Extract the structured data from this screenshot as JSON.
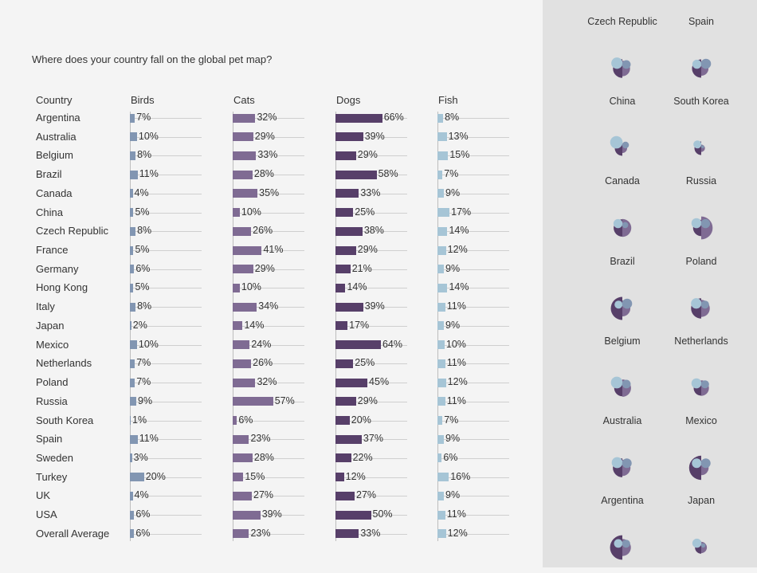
{
  "title": "Where does your country fall on the global pet map?",
  "colors": {
    "birds": "#8296b2",
    "cats": "#7f6b93",
    "dogs": "#573f69",
    "fish": "#a6c5d6"
  },
  "chart_data": {
    "type": "bar",
    "title": "Where does your country fall on the global pet map?",
    "row_header": "Country",
    "series_names": [
      "Birds",
      "Cats",
      "Dogs",
      "Fish"
    ],
    "rows": [
      {
        "country": "Argentina",
        "birds": 7,
        "cats": 32,
        "dogs": 66,
        "fish": 8
      },
      {
        "country": "Australia",
        "birds": 10,
        "cats": 29,
        "dogs": 39,
        "fish": 13
      },
      {
        "country": "Belgium",
        "birds": 8,
        "cats": 33,
        "dogs": 29,
        "fish": 15
      },
      {
        "country": "Brazil",
        "birds": 11,
        "cats": 28,
        "dogs": 58,
        "fish": 7
      },
      {
        "country": "Canada",
        "birds": 4,
        "cats": 35,
        "dogs": 33,
        "fish": 9
      },
      {
        "country": "China",
        "birds": 5,
        "cats": 10,
        "dogs": 25,
        "fish": 17
      },
      {
        "country": "Czech Republic",
        "birds": 8,
        "cats": 26,
        "dogs": 38,
        "fish": 14
      },
      {
        "country": "France",
        "birds": 5,
        "cats": 41,
        "dogs": 29,
        "fish": 12
      },
      {
        "country": "Germany",
        "birds": 6,
        "cats": 29,
        "dogs": 21,
        "fish": 9
      },
      {
        "country": "Hong Kong",
        "birds": 5,
        "cats": 10,
        "dogs": 14,
        "fish": 14
      },
      {
        "country": "Italy",
        "birds": 8,
        "cats": 34,
        "dogs": 39,
        "fish": 11
      },
      {
        "country": "Japan",
        "birds": 2,
        "cats": 14,
        "dogs": 17,
        "fish": 9
      },
      {
        "country": "Mexico",
        "birds": 10,
        "cats": 24,
        "dogs": 64,
        "fish": 10
      },
      {
        "country": "Netherlands",
        "birds": 7,
        "cats": 26,
        "dogs": 25,
        "fish": 11
      },
      {
        "country": "Poland",
        "birds": 7,
        "cats": 32,
        "dogs": 45,
        "fish": 12
      },
      {
        "country": "Russia",
        "birds": 9,
        "cats": 57,
        "dogs": 29,
        "fish": 11
      },
      {
        "country": "South Korea",
        "birds": 1,
        "cats": 6,
        "dogs": 20,
        "fish": 7
      },
      {
        "country": "Spain",
        "birds": 11,
        "cats": 23,
        "dogs": 37,
        "fish": 9
      },
      {
        "country": "Sweden",
        "birds": 3,
        "cats": 28,
        "dogs": 22,
        "fish": 6
      },
      {
        "country": "Turkey",
        "birds": 20,
        "cats": 15,
        "dogs": 12,
        "fish": 16
      },
      {
        "country": "UK",
        "birds": 4,
        "cats": 27,
        "dogs": 27,
        "fish": 9
      },
      {
        "country": "USA",
        "birds": 6,
        "cats": 39,
        "dogs": 50,
        "fish": 11
      },
      {
        "country": "Overall Average",
        "birds": 6,
        "cats": 23,
        "dogs": 33,
        "fish": 12
      }
    ],
    "xlim": [
      0,
      100
    ],
    "unit": "%"
  },
  "petal_grid": [
    [
      "Czech Republic",
      "Spain"
    ],
    [
      "China",
      "South Korea"
    ],
    [
      "Canada",
      "Russia"
    ],
    [
      "Brazil",
      "Poland"
    ],
    [
      "Belgium",
      "Netherlands"
    ],
    [
      "Australia",
      "Mexico"
    ],
    [
      "Argentina",
      "Japan"
    ]
  ]
}
